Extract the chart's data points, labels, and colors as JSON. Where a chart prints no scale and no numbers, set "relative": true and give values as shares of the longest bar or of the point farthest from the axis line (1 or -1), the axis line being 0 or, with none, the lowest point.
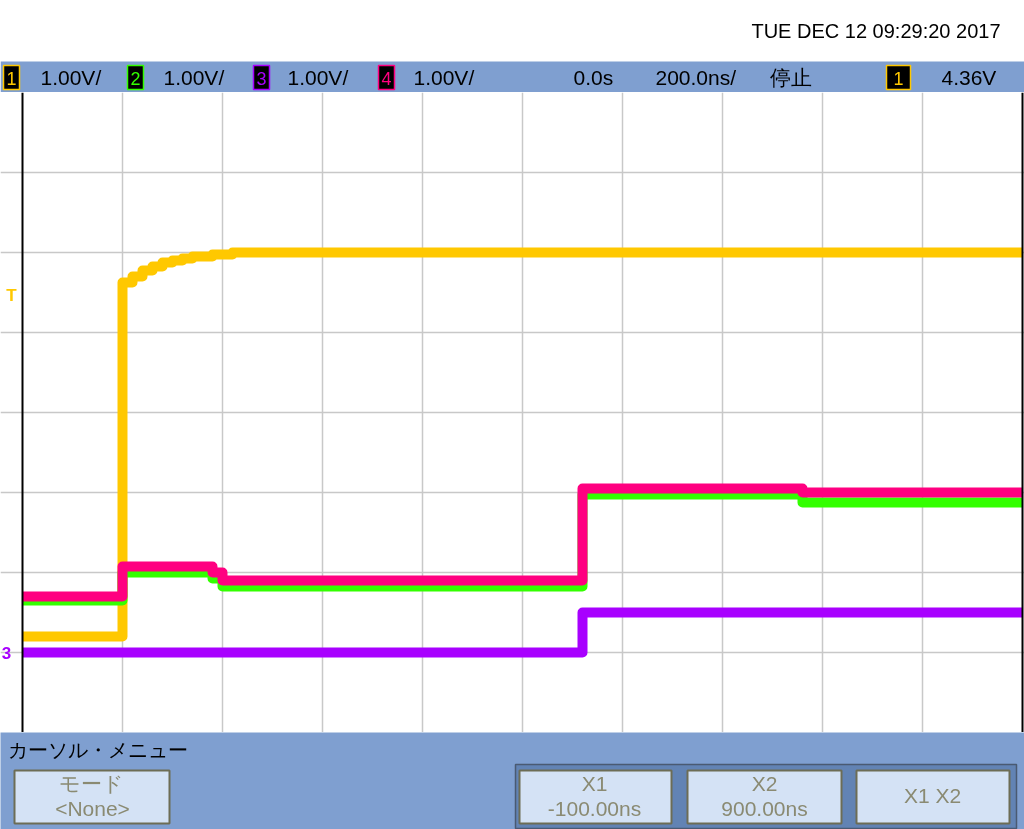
{
  "chart_data": {
    "type": "step",
    "relative": true,
    "title": "TUE DEC 12 09:29:20 2017",
    "grid": true,
    "legend": "top",
    "tick_labels": false,
    "categories": [
      null,
      null,
      null,
      null,
      null,
      null,
      null,
      null,
      null,
      null,
      null,
      null,
      null,
      null,
      null,
      null,
      null,
      null,
      null,
      null,
      null,
      null,
      null,
      null,
      null,
      null,
      null,
      null,
      null,
      null,
      null,
      null,
      null,
      null,
      null,
      null,
      null,
      null,
      null,
      null,
      null,
      null,
      null,
      null,
      null,
      null,
      null,
      null,
      null,
      null,
      null,
      null,
      null,
      null,
      null,
      null,
      null,
      null,
      null,
      null,
      null,
      null,
      null,
      null,
      null,
      null,
      null,
      null,
      null,
      null,
      null,
      null,
      null,
      null,
      null,
      null,
      null,
      null,
      null,
      null,
      null,
      null,
      null,
      null,
      null,
      null,
      null,
      null,
      null,
      null,
      null,
      null,
      null,
      null,
      null,
      null,
      null,
      null,
      null,
      null,
      null
    ],
    "series": [
      {
        "name": "1",
        "color": "#ffc800",
        "values": [
          0.04,
          0.04,
          0.04,
          0.04,
          0.04,
          0.04,
          0.04,
          0.04,
          0.04,
          0.04,
          0.925,
          0.94,
          0.955,
          0.965,
          0.975,
          0.98,
          0.985,
          0.99,
          0.99,
          0.995,
          0.995,
          1,
          1,
          1,
          1,
          1,
          1,
          1,
          1,
          1,
          1,
          1,
          1,
          1,
          1,
          1,
          1,
          1,
          1,
          1,
          1,
          1,
          1,
          1,
          1,
          1,
          1,
          1,
          1,
          1,
          1,
          1,
          1,
          1,
          1,
          1,
          1,
          1,
          1,
          1,
          1,
          1,
          1,
          1,
          1,
          1,
          1,
          1,
          1,
          1,
          1,
          1,
          1,
          1,
          1,
          1,
          1,
          1,
          1,
          1,
          1,
          1,
          1,
          1,
          1,
          1,
          1,
          1,
          1,
          1,
          1,
          1,
          1,
          1,
          1,
          1,
          1,
          1,
          1,
          1,
          1
        ]
      },
      {
        "name": "2",
        "color": "#33ff00",
        "values": [
          0.13,
          0.13,
          0.13,
          0.13,
          0.13,
          0.13,
          0.13,
          0.13,
          0.13,
          0.13,
          0.2,
          0.2,
          0.2,
          0.2,
          0.2,
          0.2,
          0.2,
          0.2,
          0.2,
          0.185,
          0.165,
          0.165,
          0.165,
          0.165,
          0.165,
          0.165,
          0.165,
          0.165,
          0.165,
          0.165,
          0.165,
          0.165,
          0.165,
          0.165,
          0.165,
          0.165,
          0.165,
          0.165,
          0.165,
          0.165,
          0.165,
          0.165,
          0.165,
          0.165,
          0.165,
          0.165,
          0.165,
          0.165,
          0.165,
          0.165,
          0.165,
          0.165,
          0.165,
          0.165,
          0.165,
          0.165,
          0.395,
          0.395,
          0.395,
          0.395,
          0.395,
          0.395,
          0.395,
          0.395,
          0.395,
          0.395,
          0.395,
          0.395,
          0.395,
          0.395,
          0.395,
          0.395,
          0.395,
          0.395,
          0.395,
          0.395,
          0.395,
          0.395,
          0.375,
          0.375,
          0.375,
          0.375,
          0.375,
          0.375,
          0.375,
          0.375,
          0.375,
          0.375,
          0.375,
          0.375,
          0.375,
          0.375,
          0.375,
          0.375,
          0.375,
          0.375,
          0.375,
          0.375,
          0.375,
          0.375,
          0.375
        ]
      },
      {
        "name": "3",
        "color": "#a800ff",
        "values": [
          0,
          0,
          0,
          0,
          0,
          0,
          0,
          0,
          0,
          0,
          0,
          0,
          0,
          0,
          0,
          0,
          0,
          0,
          0,
          0,
          0,
          0,
          0,
          0,
          0,
          0,
          0,
          0,
          0,
          0,
          0,
          0,
          0,
          0,
          0,
          0,
          0,
          0,
          0,
          0,
          0,
          0,
          0,
          0,
          0,
          0,
          0,
          0,
          0,
          0,
          0,
          0,
          0,
          0,
          0,
          0,
          0.1,
          0.1,
          0.1,
          0.1,
          0.1,
          0.1,
          0.1,
          0.1,
          0.1,
          0.1,
          0.1,
          0.1,
          0.1,
          0.1,
          0.1,
          0.1,
          0.1,
          0.1,
          0.1,
          0.1,
          0.1,
          0.1,
          0.1,
          0.1,
          0.1,
          0.1,
          0.1,
          0.1,
          0.1,
          0.1,
          0.1,
          0.1,
          0.1,
          0.1,
          0.1,
          0.1,
          0.1,
          0.1,
          0.1,
          0.1,
          0.1,
          0.1,
          0.1,
          0.1,
          0.1
        ]
      },
      {
        "name": "4",
        "color": "#ff0080",
        "values": [
          0.14,
          0.14,
          0.14,
          0.14,
          0.14,
          0.14,
          0.14,
          0.14,
          0.14,
          0.14,
          0.215,
          0.215,
          0.215,
          0.215,
          0.215,
          0.215,
          0.215,
          0.215,
          0.215,
          0.2,
          0.18,
          0.18,
          0.18,
          0.18,
          0.18,
          0.18,
          0.18,
          0.18,
          0.18,
          0.18,
          0.18,
          0.18,
          0.18,
          0.18,
          0.18,
          0.18,
          0.18,
          0.18,
          0.18,
          0.18,
          0.18,
          0.18,
          0.18,
          0.18,
          0.18,
          0.18,
          0.18,
          0.18,
          0.18,
          0.18,
          0.18,
          0.18,
          0.18,
          0.18,
          0.18,
          0.18,
          0.41,
          0.41,
          0.41,
          0.41,
          0.41,
          0.41,
          0.41,
          0.41,
          0.41,
          0.41,
          0.41,
          0.41,
          0.41,
          0.41,
          0.41,
          0.41,
          0.41,
          0.41,
          0.41,
          0.41,
          0.41,
          0.41,
          0.4,
          0.4,
          0.4,
          0.4,
          0.4,
          0.4,
          0.4,
          0.4,
          0.4,
          0.4,
          0.4,
          0.4,
          0.4,
          0.4,
          0.4,
          0.4,
          0.4,
          0.4,
          0.4,
          0.4,
          0.4,
          0.4,
          0.4
        ]
      }
    ],
    "annotations": [
      "1.00V/",
      "1.00V/",
      "1.00V/",
      "1.00V/",
      "0.0s",
      "200.0ns/",
      "停止",
      "1",
      "4.36V",
      "カーソル・メニュー",
      "モード",
      "<None>",
      "X1",
      "-100.00ns",
      "X2",
      "900.00ns",
      "X1 X2",
      "T",
      "3"
    ]
  }
}
